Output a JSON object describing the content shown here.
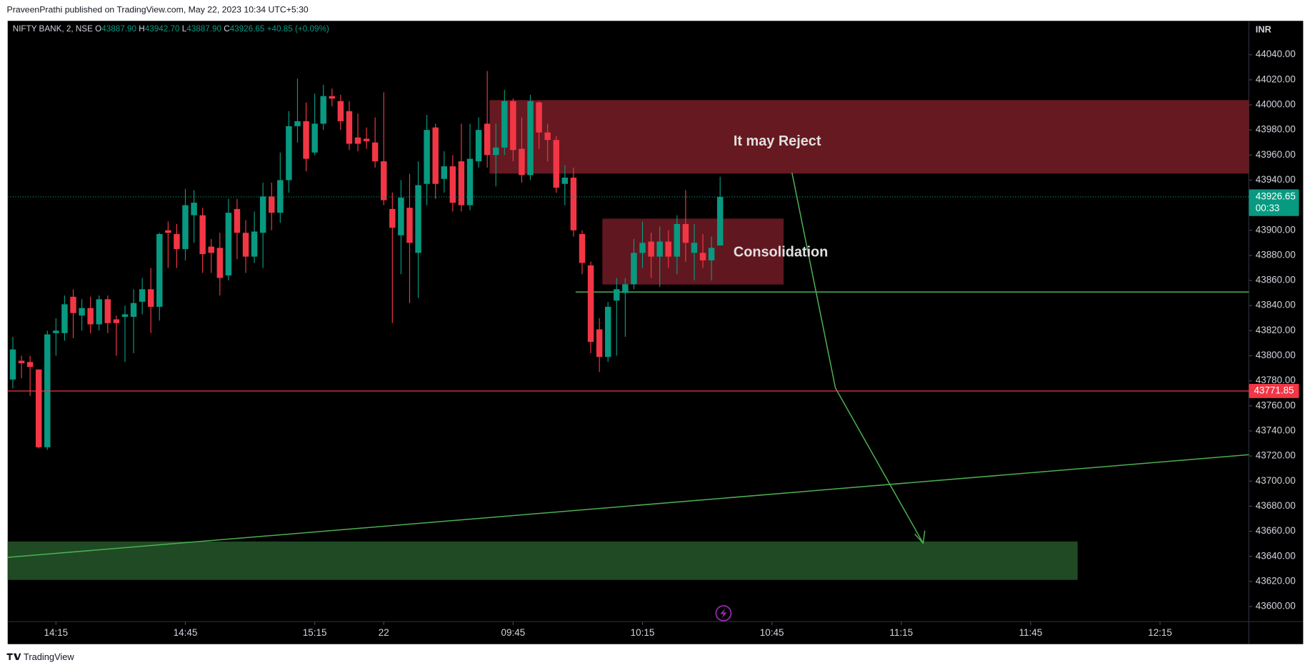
{
  "header": {
    "credit": "PraveenPrathi published on TradingView.com, May 22, 2023 10:34 UTC+5:30",
    "symbol": "NIFTY BANK, 2, NSE",
    "ohlc": [
      {
        "key": "O",
        "value": "43887.90"
      },
      {
        "key": "H",
        "value": "43942.70"
      },
      {
        "key": "L",
        "value": "43887.90"
      },
      {
        "key": "C",
        "value": "43926.65"
      }
    ],
    "change": "+40.85 (+0.09%)"
  },
  "footer": {
    "brand": "TradingView"
  },
  "chart_data": {
    "type": "candlestick",
    "currency": "INR",
    "up_color": "#089981",
    "down_color": "#f23645",
    "open": [
      43781,
      43796,
      43795,
      43789,
      43727,
      43818,
      43818,
      43847,
      43832,
      43838,
      43825,
      43845,
      43829,
      43831,
      43831,
      43843,
      43853,
      43839,
      43900,
      43897,
      43885,
      43912,
      43912,
      43887,
      43886,
      43864,
      43917,
      43898,
      43879,
      43898,
      43927,
      43914,
      43940,
      43983,
      43987,
      43962,
      43985,
      44007,
      44003,
      43995,
      43974,
      43973,
      43970,
      43955,
      43917,
      43896,
      43918,
      43882,
      43937,
      43982,
      43941,
      43951,
      43955,
      43920,
      43955,
      43985,
      43960,
      43966,
      44003,
      43965,
      43944,
      44002,
      43978,
      43972,
      43937,
      43942,
      43897,
      43872,
      43821,
      43799,
      43844,
      43850,
      43857,
      43882,
      43891,
      43879,
      43891,
      43879,
      43905,
      43882,
      43882,
      43876,
      43887.9
    ],
    "high": [
      43815,
      43800,
      43800,
      43789,
      43820,
      43830,
      43848,
      43853,
      43845,
      43847,
      43848,
      43848,
      43832,
      43840,
      43853,
      43862,
      43870,
      43898,
      43907,
      43905,
      43933,
      43932,
      43918,
      43893,
      43898,
      43925,
      43925,
      43908,
      43915,
      43938,
      43938,
      43962,
      43995,
      44021,
      44002,
      44009,
      44016,
      44013,
      44008,
      44003,
      43993,
      43982,
      43990,
      44010,
      43930,
      43940,
      43945,
      43955,
      43992,
      43985,
      43963,
      43960,
      43985,
      43985,
      43990,
      44027,
      43985,
      44012,
      44005,
      43990,
      44008,
      44003,
      43985,
      43975,
      43952,
      43950,
      43900,
      43875,
      43830,
      43843,
      43862,
      43862,
      43893,
      43907,
      43898,
      43903,
      43900,
      43912,
      43932,
      43905,
      43897,
      43895,
      43942.7
    ],
    "low": [
      43774,
      43782,
      43768,
      43726,
      43725,
      43800,
      43812,
      43814,
      43820,
      43818,
      43820,
      43818,
      43800,
      43795,
      43802,
      43833,
      43818,
      43828,
      43870,
      43870,
      43876,
      43890,
      43866,
      43866,
      43848,
      43860,
      43877,
      43866,
      43874,
      43870,
      43900,
      43906,
      43930,
      43970,
      43947,
      43960,
      43980,
      43999,
      43980,
      43964,
      43963,
      43965,
      43950,
      43920,
      43826,
      43865,
      43842,
      43846,
      43920,
      43925,
      43930,
      43915,
      43915,
      43916,
      43950,
      43950,
      43935,
      43960,
      43955,
      43938,
      43940,
      43965,
      43955,
      43930,
      43920,
      43895,
      43865,
      43802,
      43787,
      43795,
      43800,
      43815,
      43853,
      43870,
      43862,
      43855,
      43870,
      43865,
      43875,
      43860,
      43870,
      43860,
      43887.9
    ],
    "close": [
      43805,
      43794,
      43791,
      43727,
      43817,
      43820,
      43841,
      43834,
      43838,
      43825,
      43845,
      43826,
      43826,
      43833,
      43842,
      43853,
      43839,
      43897,
      43898,
      43885,
      43920,
      43922,
      43881,
      43882,
      43862,
      43914,
      43898,
      43879,
      43899,
      43927,
      43914,
      43940,
      43983,
      43987,
      43957,
      43985,
      44007,
      44005,
      43987,
      43969,
      43969,
      43971,
      43955,
      43924,
      43902,
      43926,
      43890,
      43936,
      43980,
      43937,
      43951,
      43922,
      43920,
      43957,
      43980,
      43960,
      43966,
      44003,
      43964,
      43944,
      44003,
      43978,
      43972,
      43934,
      43942,
      43900,
      43874,
      43811,
      43799,
      43839,
      43853,
      43857,
      43882,
      43890,
      43879,
      43891,
      43879,
      43905,
      43890,
      43890,
      43876,
      43886,
      43926.65
    ],
    "xlim": [
      -0.6,
      143.3
    ],
    "xticks": [
      {
        "value": 5,
        "label": "14:15"
      },
      {
        "value": 20,
        "label": "14:45"
      },
      {
        "value": 35,
        "label": "15:15"
      },
      {
        "value": 43,
        "label": "22"
      },
      {
        "value": 58,
        "label": "09:45"
      },
      {
        "value": 73,
        "label": "10:15"
      },
      {
        "value": 88,
        "label": "10:45"
      },
      {
        "value": 103,
        "label": "11:15"
      },
      {
        "value": 118,
        "label": "11:45"
      },
      {
        "value": 133,
        "label": "12:15"
      }
    ],
    "ylim": [
      43570,
      44067
    ],
    "yticks": [
      {
        "value": 43600,
        "label": "43600.00"
      },
      {
        "value": 43620,
        "label": "43620.00"
      },
      {
        "value": 43640,
        "label": "43640.00"
      },
      {
        "value": 43660,
        "label": "43660.00"
      },
      {
        "value": 43680,
        "label": "43680.00"
      },
      {
        "value": 43700,
        "label": "43700.00"
      },
      {
        "value": 43720,
        "label": "43720.00"
      },
      {
        "value": 43740,
        "label": "43740.00"
      },
      {
        "value": 43760,
        "label": "43760.00"
      },
      {
        "value": 43780,
        "label": "43780.00"
      },
      {
        "value": 43800,
        "label": "43800.00"
      },
      {
        "value": 43820,
        "label": "43820.00"
      },
      {
        "value": 43840,
        "label": "43840.00"
      },
      {
        "value": 43860,
        "label": "43860.00"
      },
      {
        "value": 43880,
        "label": "43880.00"
      },
      {
        "value": 43900,
        "label": "43900.00"
      },
      {
        "value": 43920,
        "label": "43920.00"
      },
      {
        "value": 43940,
        "label": "43940.00"
      },
      {
        "value": 43960,
        "label": "43960.00"
      },
      {
        "value": 43980,
        "label": "43980.00"
      },
      {
        "value": 44000,
        "label": "44000.00"
      },
      {
        "value": 44020,
        "label": "44020.00"
      },
      {
        "value": 44040,
        "label": "44040.00"
      }
    ],
    "last_price": {
      "value": 43926.65,
      "countdown": "00:33"
    },
    "alert_price": 43771.85,
    "annotations": [
      "It may Reject",
      "Consolidation"
    ]
  }
}
